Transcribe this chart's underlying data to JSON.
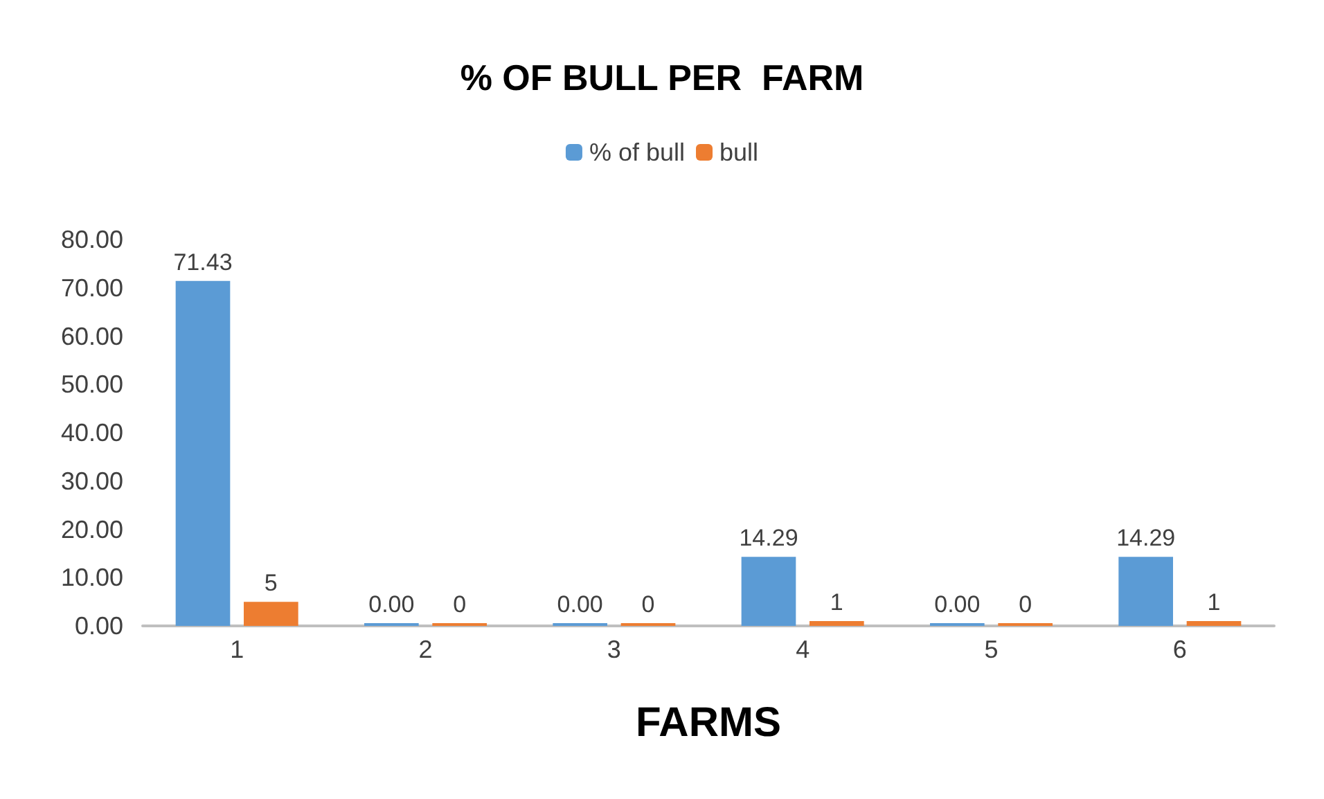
{
  "chart_data": {
    "type": "bar",
    "title": "% OF BULL PER  FARM",
    "xlabel": "FARMS",
    "categories": [
      "1",
      "2",
      "3",
      "4",
      "5",
      "6"
    ],
    "series": [
      {
        "name": "% of bull",
        "color": "#5b9bd5",
        "values": [
          71.43,
          0,
          0,
          14.29,
          0,
          14.29
        ],
        "value_labels": [
          "71.43",
          "0.00",
          "0.00",
          "14.29",
          "0.00",
          "14.29"
        ]
      },
      {
        "name": "bull",
        "color": "#ed7d31",
        "values": [
          5,
          0,
          0,
          1,
          0,
          1
        ],
        "value_labels": [
          "5",
          "0",
          "0",
          "1",
          "0",
          "1"
        ]
      }
    ],
    "ylim": [
      0,
      80
    ],
    "yticks": [
      {
        "value": 0,
        "label": "0.00"
      },
      {
        "value": 10,
        "label": "10.00"
      },
      {
        "value": 20,
        "label": "20.00"
      },
      {
        "value": 30,
        "label": "30.00"
      },
      {
        "value": 40,
        "label": "40.00"
      },
      {
        "value": 50,
        "label": "50.00"
      },
      {
        "value": 60,
        "label": "60.00"
      },
      {
        "value": 70,
        "label": "70.00"
      },
      {
        "value": 80,
        "label": "80.00"
      }
    ],
    "grid": false,
    "legend": "top"
  }
}
